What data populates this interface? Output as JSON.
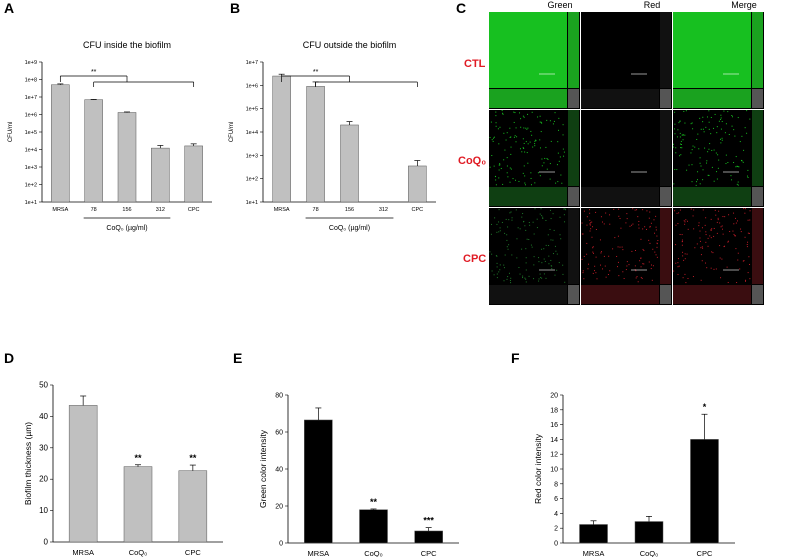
{
  "panels": {
    "A": "A",
    "B": "B",
    "C": "C",
    "D": "D",
    "E": "E",
    "F": "F"
  },
  "colors": {
    "gray_bar": "#c0c0c0",
    "black_bar": "#000000",
    "red_label": "#e01b24",
    "green": "#17c020",
    "red": "#c01c28"
  },
  "chart_data": [
    {
      "id": "A",
      "type": "bar",
      "title": "CFU inside the biofilm",
      "ylabel": "CFU/ml",
      "yscale": "log",
      "ylim_exp": [
        1,
        9
      ],
      "ytick_labels": [
        "1e+1",
        "1e+2",
        "1e+3",
        "1e+4",
        "1e+5",
        "1e+6",
        "1e+7",
        "1e+8",
        "1e+9"
      ],
      "categories": [
        "MRSA",
        "78",
        "156",
        "312",
        "CPC"
      ],
      "values": [
        50000000,
        7000000,
        1300000,
        12000,
        16000
      ],
      "errors": [
        6000000,
        300000,
        100000,
        5000,
        5000
      ],
      "group_label": "CoQ₀ (µg/ml)",
      "group_range": [
        1,
        3
      ],
      "significance": "**"
    },
    {
      "id": "B",
      "type": "bar",
      "title": "CFU outside the biofilm",
      "ylabel": "CFU/ml",
      "yscale": "log",
      "ylim_exp": [
        1,
        7
      ],
      "ytick_labels": [
        "1e+1",
        "1e+2",
        "1e+3",
        "1e+4",
        "1e+5",
        "1e+6",
        "1e+7"
      ],
      "categories": [
        "MRSA",
        "78",
        "156",
        "312",
        "CPC"
      ],
      "values": [
        2500000,
        900000,
        20000,
        null,
        350
      ],
      "errors": [
        500000,
        500000,
        8000,
        null,
        250
      ],
      "group_label": "CoQ₀ (µg/ml)",
      "group_range": [
        1,
        3
      ],
      "significance": "**"
    },
    {
      "id": "D",
      "type": "bar",
      "title": "",
      "ylabel": "Biofilm thickness (µm)",
      "ylim": [
        0,
        50
      ],
      "yticks": [
        0,
        10,
        20,
        30,
        40,
        50
      ],
      "categories": [
        "MRSA",
        "CoQ₀",
        "CPC"
      ],
      "values": [
        43.5,
        24,
        22.7
      ],
      "errors": [
        3,
        0.6,
        1.8
      ],
      "annotations": [
        "",
        "**",
        "**"
      ]
    },
    {
      "id": "E",
      "type": "bar",
      "title": "",
      "ylabel": "Green color intensity",
      "ylim": [
        0,
        80
      ],
      "yticks": [
        0,
        20,
        40,
        60,
        80
      ],
      "categories": [
        "MRSA",
        "CoQ₀",
        "CPC"
      ],
      "values": [
        66.5,
        18,
        6.5
      ],
      "errors": [
        6.5,
        0.4,
        1.8
      ],
      "annotations": [
        "",
        "**",
        "***"
      ]
    },
    {
      "id": "F",
      "type": "bar",
      "title": "",
      "ylabel": "Red color intensity",
      "ylim": [
        0,
        20
      ],
      "yticks": [
        0,
        2,
        4,
        6,
        8,
        10,
        12,
        14,
        16,
        18,
        20
      ],
      "categories": [
        "MRSA",
        "CoQ₀",
        "CPC"
      ],
      "values": [
        2.5,
        2.9,
        14
      ],
      "errors": [
        0.5,
        0.7,
        3.4
      ],
      "annotations": [
        "",
        "",
        "*"
      ]
    }
  ],
  "micrographs": {
    "columns": [
      "Green",
      "Red",
      "Merge"
    ],
    "rows": [
      "CTL",
      "CoQ₀",
      "CPC"
    ]
  }
}
